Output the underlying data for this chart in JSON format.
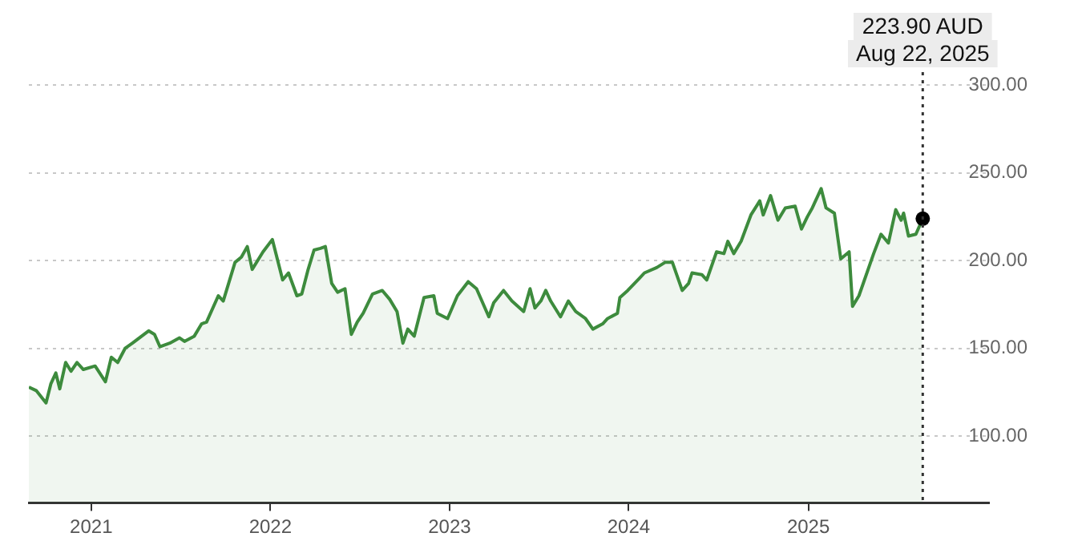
{
  "chart_data": {
    "type": "area",
    "color": "#3d8b3d",
    "x": [
      "2020-08-27",
      "2020-09-11",
      "2020-10-01",
      "2020-10-11",
      "2020-10-21",
      "2020-10-29",
      "2020-11-10",
      "2020-11-21",
      "2020-12-03",
      "2020-12-16",
      "2021-01-09",
      "2021-01-30",
      "2021-02-11",
      "2021-02-24",
      "2021-03-11",
      "2021-03-26",
      "2021-04-28",
      "2021-05-10",
      "2021-05-21",
      "2021-06-10",
      "2021-06-30",
      "2021-07-10",
      "2021-07-30",
      "2021-08-14",
      "2021-08-24",
      "2021-09-17",
      "2021-09-27",
      "2021-10-21",
      "2021-11-03",
      "2021-11-15",
      "2021-11-25",
      "2021-12-17",
      "2022-01-05",
      "2022-01-26",
      "2022-02-07",
      "2022-02-24",
      "2022-03-06",
      "2022-03-19",
      "2022-03-31",
      "2022-04-13",
      "2022-04-23",
      "2022-05-06",
      "2022-05-18",
      "2022-06-02",
      "2022-06-15",
      "2022-06-27",
      "2022-07-09",
      "2022-07-28",
      "2022-08-17",
      "2022-09-01",
      "2022-09-16",
      "2022-09-28",
      "2022-10-08",
      "2022-10-21",
      "2022-11-10",
      "2022-11-30",
      "2022-12-07",
      "2022-12-28",
      "2023-01-17",
      "2023-02-08",
      "2023-02-25",
      "2023-03-22",
      "2023-04-01",
      "2023-04-21",
      "2023-05-08",
      "2023-06-01",
      "2023-06-14",
      "2023-06-24",
      "2023-07-06",
      "2023-07-16",
      "2023-07-26",
      "2023-08-15",
      "2023-08-31",
      "2023-09-15",
      "2023-10-05",
      "2023-10-20",
      "2023-11-09",
      "2023-11-19",
      "2023-12-09",
      "2023-12-14",
      "2023-12-30",
      "2024-01-23",
      "2024-02-02",
      "2024-02-27",
      "2024-03-15",
      "2024-03-30",
      "2024-04-19",
      "2024-05-02",
      "2024-05-09",
      "2024-05-29",
      "2024-06-08",
      "2024-06-28",
      "2024-07-13",
      "2024-07-21",
      "2024-08-02",
      "2024-08-17",
      "2024-09-06",
      "2024-09-24",
      "2024-10-01",
      "2024-10-16",
      "2024-10-31",
      "2024-11-15",
      "2024-12-05",
      "2024-12-18",
      "2024-12-30",
      "2025-01-09",
      "2025-01-27",
      "2025-02-06",
      "2025-02-23",
      "2025-03-08",
      "2025-03-25",
      "2025-04-01",
      "2025-04-14",
      "2025-05-14",
      "2025-05-29",
      "2025-06-13",
      "2025-06-28",
      "2025-07-09",
      "2025-07-14",
      "2025-07-24",
      "2025-08-08",
      "2025-08-22"
    ],
    "values": [
      128,
      126,
      119,
      130,
      136,
      127,
      142,
      137,
      142,
      138,
      140,
      131,
      145,
      142,
      150,
      153,
      160,
      158,
      151,
      153,
      156,
      154,
      157,
      164,
      165,
      180,
      177,
      199,
      202,
      208,
      195,
      205,
      212,
      189,
      193,
      180,
      181,
      195,
      206,
      207,
      208,
      187,
      182,
      184,
      158,
      165,
      170,
      181,
      183,
      178,
      171,
      153,
      161,
      157,
      179,
      180,
      170,
      167,
      180,
      188,
      184,
      168,
      176,
      183,
      177,
      171,
      184,
      173,
      177,
      183,
      177,
      168,
      177,
      171,
      167,
      161,
      164,
      167,
      170,
      179,
      183,
      190,
      193,
      196,
      199,
      199,
      183,
      187,
      193,
      192,
      189,
      205,
      204,
      211,
      204,
      211,
      226,
      234,
      226,
      237,
      223,
      230,
      231,
      218,
      225,
      230,
      241,
      230,
      227,
      201,
      205,
      174,
      180,
      204,
      215,
      210,
      229,
      223,
      227,
      214,
      215,
      223.9
    ],
    "xlim": [
      "2020-08-27",
      "2026-01-04"
    ],
    "xticks": [
      "2021",
      "2022",
      "2023",
      "2024",
      "2025"
    ],
    "ylim": [
      62,
      300
    ],
    "yticks": [
      {
        "value": 100,
        "label": "100.00"
      },
      {
        "value": 150,
        "label": "150.00"
      },
      {
        "value": 200,
        "label": "200.00"
      },
      {
        "value": 250,
        "label": "250.00"
      },
      {
        "value": 300,
        "label": "300.00"
      }
    ],
    "grid": "y",
    "legend": false,
    "marker": "none",
    "line_style": "solid",
    "ref_lines": [
      {
        "axis": "x",
        "value": "2025-08-22",
        "color": "#333333",
        "line_style": "dotted"
      }
    ],
    "annotations": [
      "223.90 AUD",
      "Aug 22, 2025"
    ]
  }
}
